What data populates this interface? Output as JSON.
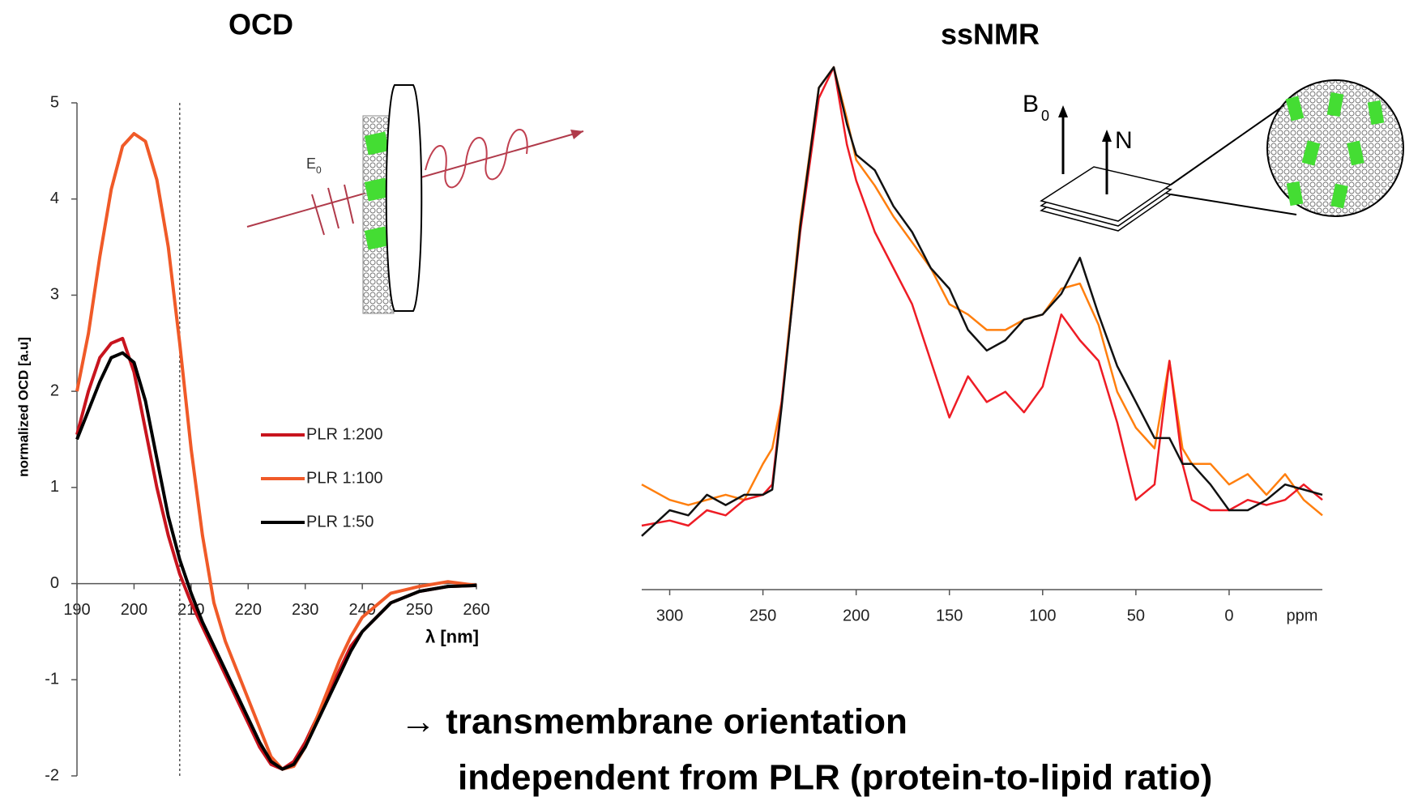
{
  "chart_data": [
    {
      "type": "line",
      "title": "OCD",
      "x_label": "λ [nm]",
      "y_label": "normalized OCD [a.u]",
      "x": [
        190,
        192,
        194,
        196,
        198,
        200,
        202,
        204,
        206,
        208,
        210,
        212,
        214,
        216,
        218,
        220,
        222,
        224,
        226,
        228,
        230,
        232,
        234,
        236,
        238,
        240,
        245,
        250,
        255,
        260
      ],
      "series": [
        {
          "name": "PLR 1:200",
          "color": "#c8141e",
          "values": [
            1.55,
            2.0,
            2.35,
            2.5,
            2.55,
            2.2,
            1.6,
            1.0,
            0.5,
            0.1,
            -0.2,
            -0.45,
            -0.7,
            -0.95,
            -1.2,
            -1.45,
            -1.7,
            -1.88,
            -1.93,
            -1.85,
            -1.65,
            -1.4,
            -1.15,
            -0.9,
            -0.65,
            -0.5,
            -0.2,
            -0.08,
            -0.03,
            -0.02
          ]
        },
        {
          "name": "PLR 1:100",
          "color": "#f05a28",
          "values": [
            2.0,
            2.6,
            3.4,
            4.1,
            4.55,
            4.68,
            4.6,
            4.2,
            3.5,
            2.5,
            1.4,
            0.5,
            -0.2,
            -0.6,
            -0.9,
            -1.2,
            -1.5,
            -1.8,
            -1.93,
            -1.9,
            -1.7,
            -1.4,
            -1.1,
            -0.8,
            -0.55,
            -0.35,
            -0.1,
            -0.03,
            0.02,
            -0.02
          ]
        },
        {
          "name": "PLR 1:50",
          "color": "#000000",
          "values": [
            1.5,
            1.8,
            2.1,
            2.35,
            2.4,
            2.3,
            1.9,
            1.3,
            0.7,
            0.25,
            -0.1,
            -0.4,
            -0.65,
            -0.9,
            -1.15,
            -1.4,
            -1.65,
            -1.85,
            -1.93,
            -1.88,
            -1.7,
            -1.45,
            -1.2,
            -0.95,
            -0.7,
            -0.5,
            -0.2,
            -0.08,
            -0.03,
            -0.02
          ]
        }
      ],
      "xlim": [
        190,
        260
      ],
      "xticks": [
        190,
        200,
        210,
        220,
        230,
        240,
        250,
        260
      ],
      "ylim": [
        -2,
        5
      ],
      "yticks": [
        -2,
        -1,
        0,
        1,
        2,
        3,
        4,
        5
      ],
      "vline": 208,
      "grid": false,
      "legend": "center"
    },
    {
      "type": "line",
      "title": "ssNMR",
      "x_label": "ppm",
      "x": [
        315,
        300,
        290,
        280,
        270,
        260,
        250,
        245,
        240,
        230,
        220,
        212,
        205,
        200,
        190,
        180,
        170,
        160,
        150,
        140,
        130,
        120,
        110,
        100,
        90,
        80,
        70,
        60,
        50,
        40,
        32,
        25,
        20,
        10,
        0,
        -10,
        -20,
        -30,
        -40,
        -50
      ],
      "series": [
        {
          "color": "#ff7f0e",
          "values": [
            0.19,
            0.16,
            0.15,
            0.16,
            0.17,
            0.16,
            0.23,
            0.26,
            0.35,
            0.7,
            0.96,
            1.0,
            0.9,
            0.82,
            0.77,
            0.71,
            0.66,
            0.61,
            0.54,
            0.52,
            0.49,
            0.49,
            0.51,
            0.52,
            0.57,
            0.58,
            0.5,
            0.37,
            0.3,
            0.26,
            0.43,
            0.26,
            0.23,
            0.23,
            0.19,
            0.21,
            0.17,
            0.21,
            0.16,
            0.13
          ]
        },
        {
          "color": "#ee1c25",
          "values": [
            0.11,
            0.12,
            0.11,
            0.14,
            0.13,
            0.16,
            0.17,
            0.19,
            0.35,
            0.68,
            0.94,
            1.0,
            0.85,
            0.78,
            0.68,
            0.61,
            0.54,
            0.43,
            0.32,
            0.4,
            0.35,
            0.37,
            0.33,
            0.38,
            0.52,
            0.47,
            0.43,
            0.31,
            0.16,
            0.19,
            0.43,
            0.23,
            0.16,
            0.14,
            0.14,
            0.16,
            0.15,
            0.16,
            0.19,
            0.16
          ]
        },
        {
          "color": "#111111",
          "values": [
            0.09,
            0.14,
            0.13,
            0.17,
            0.15,
            0.17,
            0.17,
            0.18,
            0.34,
            0.69,
            0.96,
            1.0,
            0.89,
            0.83,
            0.8,
            0.73,
            0.68,
            0.61,
            0.57,
            0.49,
            0.45,
            0.47,
            0.51,
            0.52,
            0.56,
            0.63,
            0.52,
            0.42,
            0.35,
            0.28,
            0.28,
            0.23,
            0.23,
            0.19,
            0.14,
            0.14,
            0.16,
            0.19,
            0.18,
            0.17
          ]
        }
      ],
      "xlim": [
        315,
        -50
      ],
      "xticks": [
        300,
        250,
        200,
        150,
        100,
        50,
        0
      ],
      "ylim": [
        0,
        1
      ],
      "grid": false
    }
  ],
  "illustrations": {
    "ocd_field": {
      "symbol": "E",
      "subscript": "0"
    },
    "nmr_field": {
      "symbol": "B",
      "subscript": "0"
    },
    "normal": "N"
  },
  "conclusion": [
    "→ transmembrane orientation",
    "independent from PLR (protein-to-lipid ratio)"
  ]
}
